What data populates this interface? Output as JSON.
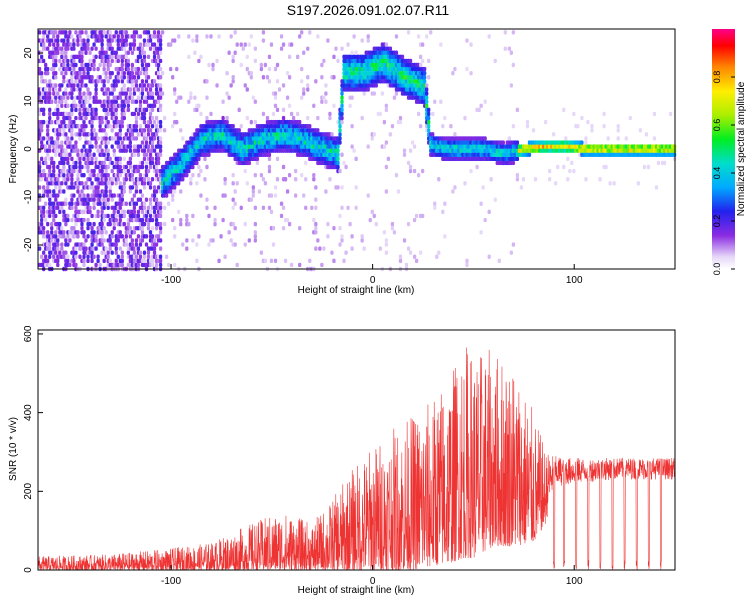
{
  "figure_title": "S197.2026.091.02.07.R11",
  "chart_data": [
    {
      "type": "heatmap",
      "name": "spectrogram",
      "xlabel": "Height of straight line (km)",
      "ylabel": "Frequency (Hz)",
      "xlim": [
        -166,
        150
      ],
      "ylim": [
        -25,
        25
      ],
      "xticks": [
        -100,
        0,
        100
      ],
      "xtick_labels": [
        "-100",
        "0",
        "100"
      ],
      "yticks": [
        -20,
        -10,
        0,
        10,
        20
      ],
      "ytick_labels": [
        "-20",
        "-10",
        "0",
        "10",
        "20"
      ],
      "colorbar": {
        "label": "Normalized spectral amplitude",
        "range": [
          0,
          1
        ],
        "ticks": [
          0.0,
          0.2,
          0.4,
          0.6,
          0.8
        ],
        "tick_labels": [
          "0.0",
          "0.2",
          "0.4",
          "0.6",
          "0.8"
        ]
      },
      "dominant_frequency_trace": {
        "x": [
          -105,
          -95,
          -85,
          -75,
          -65,
          -55,
          -45,
          -35,
          -25,
          -18,
          -15,
          -5,
          5,
          15,
          25,
          28,
          35,
          45,
          55,
          65,
          75,
          85,
          95,
          105,
          115,
          125,
          135,
          148
        ],
        "y": [
          -7,
          -3,
          2,
          3,
          0,
          2,
          3,
          2,
          0,
          -1,
          16,
          16,
          18,
          15,
          13,
          1,
          0,
          0,
          0,
          -1,
          0,
          0.5,
          0.5,
          0,
          0,
          0,
          0,
          0
        ]
      }
    },
    {
      "type": "line",
      "name": "snr",
      "xlabel": "Height of straight line (km)",
      "ylabel": "SNR (10 * v/v)",
      "xlim": [
        -166,
        150
      ],
      "ylim": [
        0,
        610
      ],
      "xticks": [
        -100,
        0,
        100
      ],
      "xtick_labels": [
        "-100",
        "0",
        "100"
      ],
      "yticks": [
        0,
        200,
        400,
        600
      ],
      "ytick_labels": [
        "0",
        "200",
        "400",
        "600"
      ],
      "color": "#ee3333",
      "envelope": {
        "x": [
          -166,
          -130,
          -100,
          -80,
          -60,
          -45,
          -30,
          -20,
          -10,
          0,
          10,
          20,
          30,
          40,
          45,
          50,
          60,
          70,
          80,
          86,
          90,
          100,
          120,
          150
        ],
        "lower": [
          0,
          0,
          0,
          0,
          0,
          0,
          0,
          0,
          0,
          0,
          0,
          0,
          10,
          20,
          30,
          30,
          60,
          60,
          70,
          120,
          210,
          220,
          230,
          230
        ],
        "upper": [
          35,
          40,
          55,
          70,
          120,
          150,
          120,
          180,
          260,
          320,
          360,
          400,
          440,
          520,
          590,
          560,
          560,
          540,
          400,
          300,
          290,
          285,
          285,
          285
        ]
      },
      "dropouts_x": [
        90,
        95,
        101,
        107,
        113,
        119,
        125,
        131,
        137,
        143
      ]
    }
  ]
}
